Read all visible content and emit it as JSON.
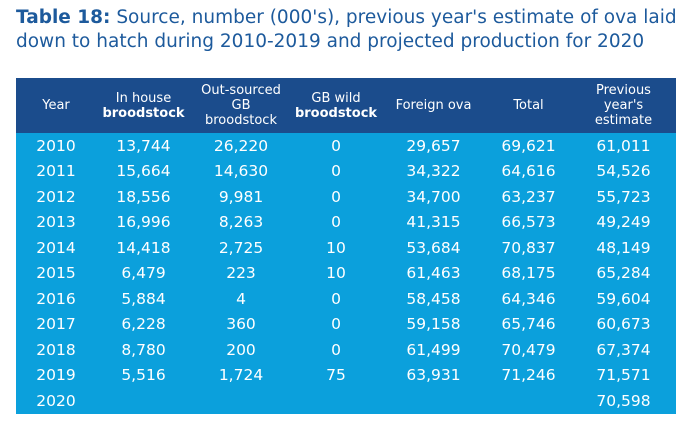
{
  "title": {
    "label": "Table 18:",
    "text": " Source, number (000's), previous year's estimate of ova laid down to hatch during 2010-2019 and projected production for 2020"
  },
  "headers": [
    {
      "l1": "Year",
      "l2": ""
    },
    {
      "l1": "In house",
      "l2": "broodstock"
    },
    {
      "l1": "Out-sourced GB",
      "l2": "broodstock"
    },
    {
      "l1": "GB wild",
      "l2": "broodstock"
    },
    {
      "l1": "Foreign ova",
      "l2": ""
    },
    {
      "l1": "Total",
      "l2": ""
    },
    {
      "l1": "Previous year's estimate",
      "l2": ""
    }
  ],
  "rows": [
    [
      "2010",
      "13,744",
      "26,220",
      "0",
      "29,657",
      "69,621",
      "61,011"
    ],
    [
      "2011",
      "15,664",
      "14,630",
      "0",
      "34,322",
      "64,616",
      "54,526"
    ],
    [
      "2012",
      "18,556",
      "9,981",
      "0",
      "34,700",
      "63,237",
      "55,723"
    ],
    [
      "2013",
      "16,996",
      "8,263",
      "0",
      "41,315",
      "66,573",
      "49,249"
    ],
    [
      "2014",
      "14,418",
      "2,725",
      "10",
      "53,684",
      "70,837",
      "48,149"
    ],
    [
      "2015",
      "6,479",
      "223",
      "10",
      "61,463",
      "68,175",
      "65,284"
    ],
    [
      "2016",
      "5,884",
      "4",
      "0",
      "58,458",
      "64,346",
      "59,604"
    ],
    [
      "2017",
      "6,228",
      "360",
      "0",
      "59,158",
      "65,746",
      "60,673"
    ],
    [
      "2018",
      "8,780",
      "200",
      "0",
      "61,499",
      "70,479",
      "67,374"
    ],
    [
      "2019",
      "5,516",
      "1,724",
      "75",
      "63,931",
      "71,246",
      "71,571"
    ],
    [
      "2020",
      "",
      "",
      "",
      "",
      "",
      "70,598"
    ]
  ],
  "colors": {
    "header": "#1b4c8c",
    "body": "#0ba0dc",
    "title": "#1d5a9c"
  }
}
